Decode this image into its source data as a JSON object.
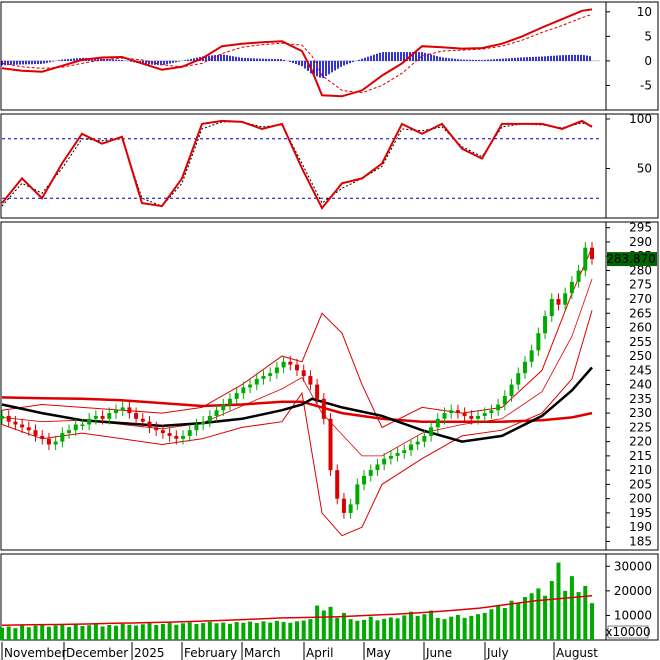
{
  "chart_data": [
    {
      "panel": "macd",
      "type": "line",
      "y_ticks": [
        10,
        5,
        0,
        -5
      ],
      "ylim": [
        -10,
        12
      ],
      "colors": {
        "line": "#dd0000",
        "signal": "#dd0000",
        "hist_pos": "#0000cc",
        "hist_neg": "#0000cc"
      },
      "x": [
        0,
        20,
        40,
        60,
        80,
        100,
        120,
        140,
        160,
        180,
        200,
        220,
        240,
        260,
        280,
        300,
        310,
        320,
        340,
        360,
        380,
        400,
        420,
        440,
        460,
        480,
        500,
        520,
        540,
        560,
        580,
        590
      ],
      "series": [
        {
          "role": "macd",
          "values": [
            -1.5,
            -2.0,
            -2.2,
            -1.0,
            0.2,
            0.7,
            0.8,
            -0.5,
            -1.8,
            -1.2,
            0.5,
            3.0,
            3.5,
            3.8,
            4.0,
            2.0,
            -2.0,
            -7.0,
            -7.2,
            -6.0,
            -3.0,
            -0.5,
            3.0,
            2.8,
            2.5,
            2.6,
            3.5,
            5.0,
            6.8,
            8.5,
            10.2,
            10.5
          ]
        },
        {
          "role": "signal",
          "values": [
            -0.5,
            -1.2,
            -1.5,
            -1.3,
            -0.5,
            0.2,
            0.6,
            0.2,
            -0.8,
            -1.2,
            -0.5,
            1.5,
            2.8,
            3.3,
            3.6,
            3.2,
            1.0,
            -3.0,
            -6.0,
            -6.5,
            -5.0,
            -2.5,
            1.0,
            2.0,
            2.2,
            2.4,
            3.0,
            4.2,
            5.8,
            7.2,
            8.8,
            9.5
          ]
        }
      ]
    },
    {
      "panel": "stochastic",
      "type": "line",
      "y_ticks": [
        100,
        50
      ],
      "ylim": [
        0,
        105
      ],
      "reference_lines": [
        80,
        20
      ],
      "x": [
        0,
        20,
        40,
        60,
        80,
        100,
        120,
        140,
        160,
        180,
        200,
        220,
        240,
        260,
        280,
        300,
        320,
        340,
        360,
        380,
        400,
        420,
        440,
        460,
        480,
        500,
        520,
        540,
        560,
        580,
        590
      ],
      "series": [
        {
          "role": "k",
          "values": [
            15,
            40,
            20,
            55,
            85,
            75,
            82,
            15,
            12,
            40,
            95,
            98,
            97,
            90,
            95,
            50,
            10,
            35,
            40,
            55,
            95,
            85,
            95,
            70,
            60,
            95,
            95,
            95,
            90,
            98,
            92
          ]
        },
        {
          "role": "d",
          "values": [
            12,
            35,
            25,
            50,
            80,
            78,
            80,
            20,
            12,
            35,
            90,
            97,
            97,
            92,
            94,
            55,
            15,
            30,
            40,
            52,
            90,
            88,
            92,
            72,
            62,
            92,
            95,
            94,
            91,
            96,
            93
          ]
        }
      ]
    },
    {
      "panel": "price",
      "type": "candlestick",
      "y_ticks": [
        295,
        290,
        285,
        280,
        275,
        270,
        265,
        260,
        255,
        250,
        245,
        240,
        235,
        230,
        225,
        220,
        215,
        210,
        205,
        200,
        195,
        190,
        185
      ],
      "ylim": [
        182,
        297
      ],
      "last_price_label": "283.870",
      "colors": {
        "up": "#00aa00",
        "down": "#dd0000",
        "ma_long": "#dd0000",
        "ma_mid": "#000000",
        "bands": "#dd0000",
        "last_price_bg": "#006600",
        "last_price_fg": "#ffffff"
      },
      "closes": [
        229,
        227,
        226,
        225,
        224,
        222,
        221,
        219,
        220,
        223,
        224,
        226,
        226,
        228,
        229,
        228,
        230,
        231,
        232,
        230,
        228,
        227,
        225,
        224,
        223,
        222,
        221,
        222,
        224,
        226,
        227,
        229,
        231,
        233,
        235,
        237,
        239,
        240,
        242,
        243,
        244,
        246,
        248,
        247,
        245,
        243,
        240,
        235,
        228,
        210,
        200,
        195,
        198,
        205,
        208,
        210,
        212,
        214,
        215,
        216,
        217,
        219,
        220,
        222,
        225,
        228,
        230,
        231,
        230,
        229,
        228,
        229,
        230,
        231,
        233,
        236,
        240,
        244,
        248,
        252,
        258,
        264,
        270,
        268,
        272,
        276,
        280,
        288,
        284
      ],
      "lines": [
        {
          "role": "ma_long",
          "x": [
            0,
            40,
            80,
            120,
            160,
            200,
            240,
            280,
            300,
            320,
            340,
            380,
            420,
            460,
            500,
            540,
            570,
            590
          ],
          "values": [
            235.5,
            235.2,
            235,
            234.5,
            233.5,
            232.5,
            233,
            234,
            234,
            232,
            230,
            228,
            227,
            227,
            227,
            227.5,
            228.5,
            230
          ]
        },
        {
          "role": "ma_mid",
          "x": [
            0,
            40,
            80,
            120,
            160,
            200,
            240,
            280,
            300,
            310,
            320,
            340,
            380,
            420,
            460,
            500,
            540,
            570,
            590
          ],
          "values": [
            233,
            230,
            227.5,
            226.5,
            225.5,
            226.5,
            228,
            231,
            233,
            235,
            234,
            232,
            229,
            224,
            220,
            222,
            229,
            238,
            246
          ]
        },
        {
          "role": "band_upper",
          "x": [
            0,
            40,
            80,
            120,
            160,
            200,
            240,
            280,
            300,
            320,
            340,
            360,
            380,
            420,
            460,
            500,
            540,
            570,
            590
          ],
          "values": [
            231,
            233,
            232,
            231,
            230,
            232,
            240,
            250,
            248,
            265,
            258,
            240,
            225,
            232,
            230,
            232,
            245,
            272,
            288
          ]
        },
        {
          "role": "band_lower",
          "x": [
            0,
            40,
            80,
            120,
            160,
            200,
            240,
            280,
            300,
            320,
            340,
            360,
            380,
            420,
            460,
            500,
            540,
            570,
            590
          ],
          "values": [
            226,
            221,
            223,
            221,
            219,
            221,
            225,
            227,
            237,
            195,
            187,
            190,
            205,
            214,
            222,
            224,
            230,
            242,
            266
          ]
        },
        {
          "role": "band_middle",
          "x": [
            0,
            40,
            80,
            120,
            160,
            200,
            240,
            280,
            300,
            320,
            340,
            360,
            380,
            420,
            460,
            500,
            540,
            570,
            590
          ],
          "values": [
            228.5,
            227,
            227.5,
            226,
            224.5,
            226.5,
            232.5,
            238.5,
            242.5,
            230,
            222.5,
            215,
            215,
            223,
            226,
            228,
            237.5,
            257,
            277
          ]
        }
      ]
    },
    {
      "panel": "volume",
      "type": "bar",
      "y_ticks": [
        30000,
        20000,
        10000
      ],
      "ylim": [
        0,
        35000
      ],
      "unit": "x10000",
      "colors": {
        "up": "#00aa00",
        "down": "#dd0000",
        "ma": "#dd0000"
      },
      "values": [
        5000,
        5500,
        4800,
        6000,
        5200,
        5800,
        6200,
        5400,
        5900,
        6100,
        5300,
        6400,
        5700,
        6000,
        6300,
        5500,
        6100,
        5800,
        6600,
        6200,
        5900,
        6400,
        6800,
        6100,
        6500,
        7000,
        6200,
        6800,
        7200,
        6500,
        6900,
        7400,
        6800,
        7100,
        6600,
        7300,
        7000,
        7500,
        6900,
        7600,
        7100,
        7800,
        7300,
        7000,
        7600,
        7900,
        8500,
        14000,
        12000,
        13500,
        9000,
        11000,
        8500,
        7800,
        8200,
        9500,
        8000,
        8600,
        9200,
        8800,
        10000,
        11500,
        9800,
        10500,
        12000,
        9000,
        8500,
        9500,
        10200,
        9000,
        9800,
        10500,
        11000,
        12500,
        14000,
        13000,
        16000,
        15000,
        17500,
        19000,
        21000,
        18000,
        24000,
        31500,
        20000,
        26000,
        19500,
        22000,
        15000
      ],
      "ma": [
        6000,
        6200,
        6300,
        6500,
        6800,
        7000,
        7300,
        7600,
        8000,
        8500,
        9000,
        9200,
        9500,
        10000,
        10500,
        11200,
        12000,
        13000,
        14500,
        16000,
        17000,
        18000
      ]
    }
  ],
  "x_axis": {
    "months": [
      "November",
      "December",
      "2025",
      "February",
      "March",
      "April",
      "May",
      "June",
      "July",
      "August"
    ]
  }
}
